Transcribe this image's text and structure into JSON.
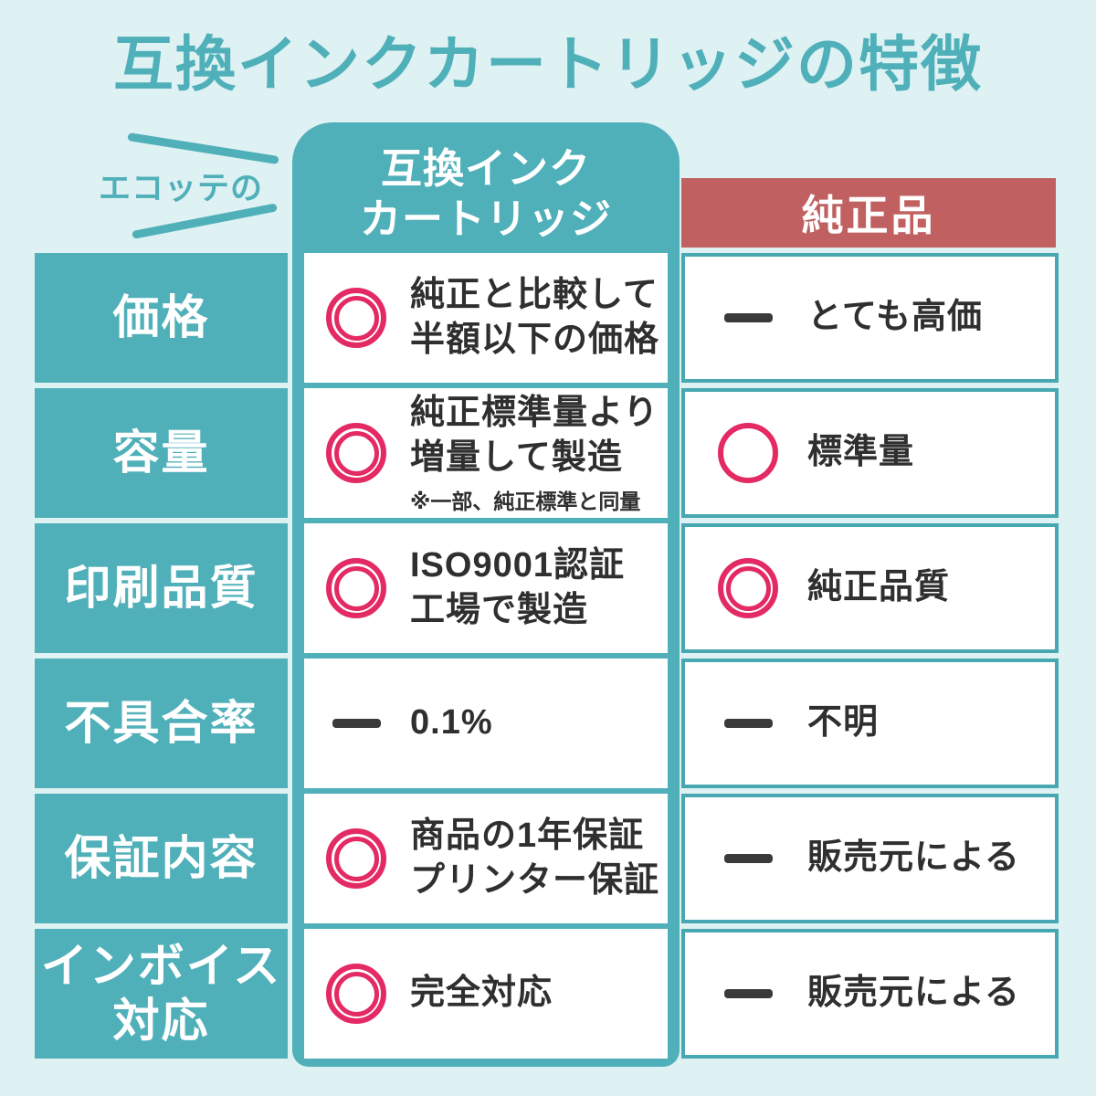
{
  "title": "互換インクカートリッジの特徴",
  "brand_label": "エコッテの",
  "columns": {
    "compat": "互換インク\nカートリッジ",
    "genuine": "純正品"
  },
  "rows": [
    {
      "label": "価格",
      "compat": {
        "icon": "double-circle",
        "text": "純正と比較して\n半額以下の価格"
      },
      "genuine": {
        "icon": "dash",
        "text": "とても高価"
      }
    },
    {
      "label": "容量",
      "compat": {
        "icon": "double-circle",
        "text": "純正標準量より\n増量して製造",
        "note": "※一部、純正標準と同量"
      },
      "genuine": {
        "icon": "circle",
        "text": "標準量"
      }
    },
    {
      "label": "印刷品質",
      "compat": {
        "icon": "double-circle",
        "text": "ISO9001認証\n工場で製造"
      },
      "genuine": {
        "icon": "double-circle",
        "text": "純正品質"
      }
    },
    {
      "label": "不具合率",
      "compat": {
        "icon": "dash",
        "text": "0.1%"
      },
      "genuine": {
        "icon": "dash",
        "text": "不明"
      }
    },
    {
      "label": "保証内容",
      "compat": {
        "icon": "double-circle",
        "text": "商品の1年保証\nプリンター保証"
      },
      "genuine": {
        "icon": "dash",
        "text": "販売元による"
      }
    },
    {
      "label": "インボイス\n対応",
      "compat": {
        "icon": "double-circle",
        "text": "完全対応"
      },
      "genuine": {
        "icon": "dash",
        "text": "販売元による"
      }
    }
  ],
  "legend": {
    "double-circle": "excellent",
    "circle": "good",
    "dash": "neutral-or-none"
  },
  "colors": {
    "teal": "#50b0b9",
    "background": "#def1f3",
    "genuine_header_red": "#c06060",
    "mark_pink": "#e42a63",
    "text_dark": "#2f2f2f"
  }
}
